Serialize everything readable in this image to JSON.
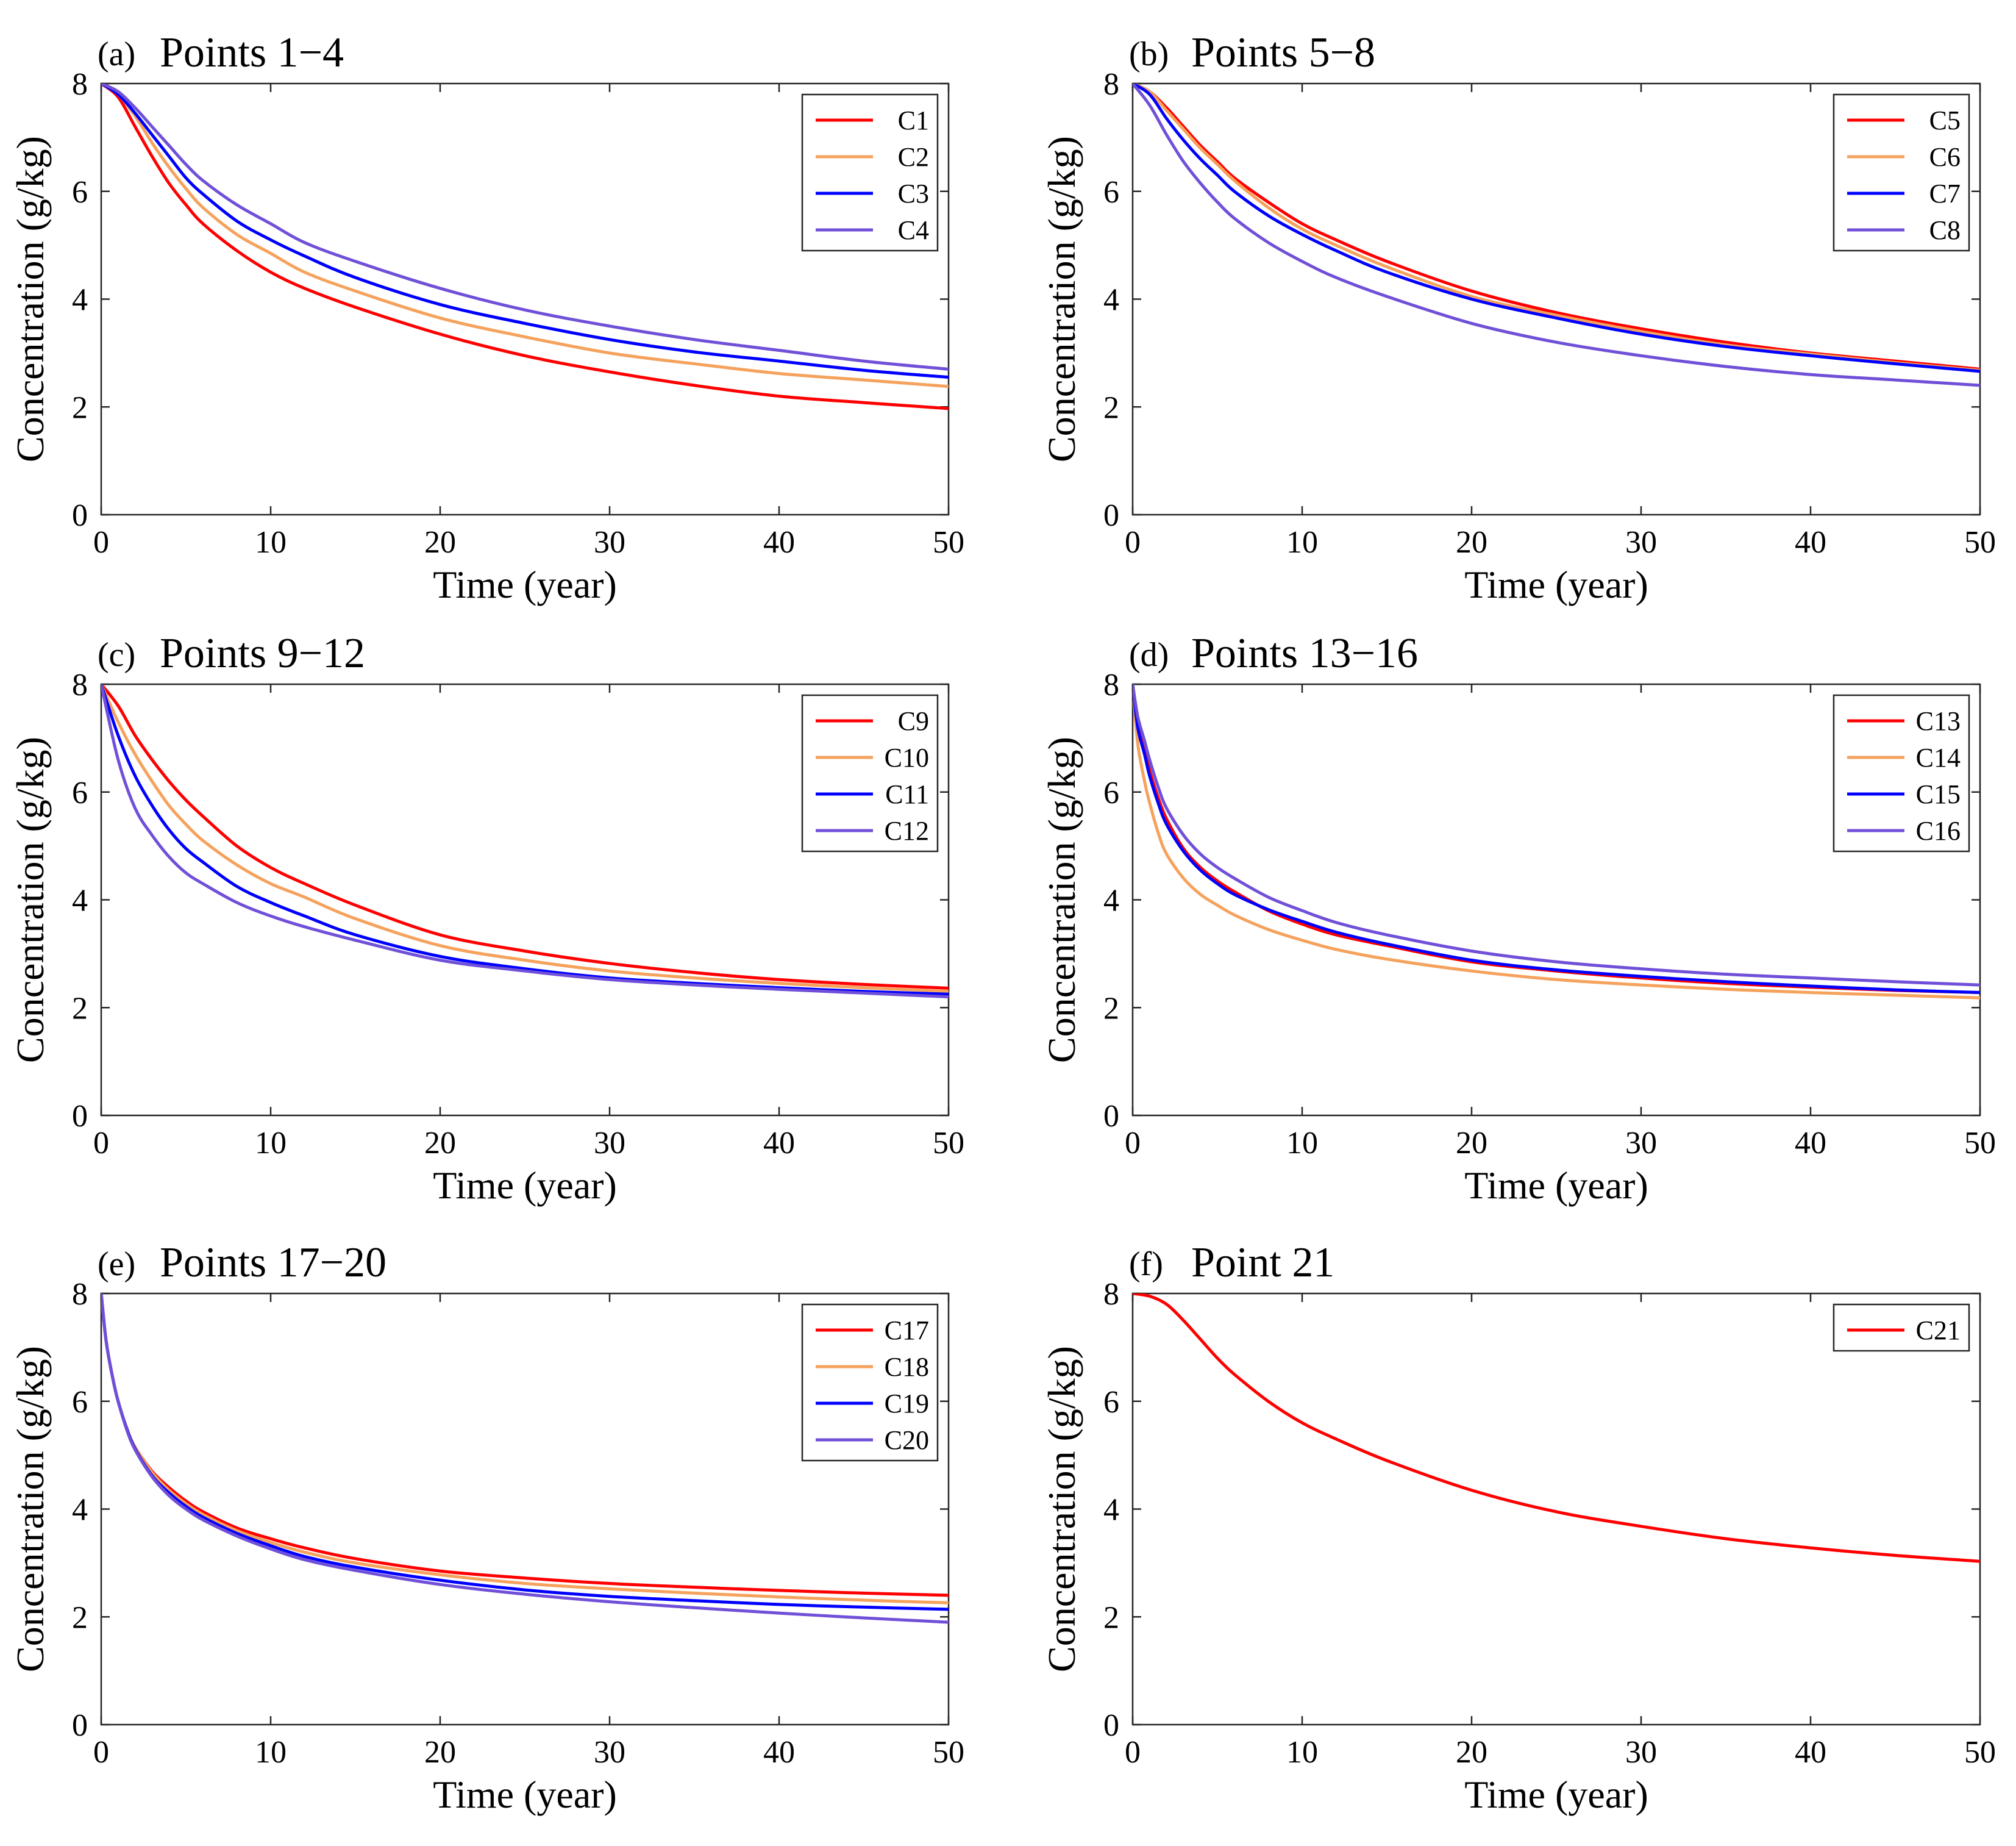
{
  "chart_data": [
    {
      "type": "line",
      "letter": "(a)",
      "title": "Points 1−4",
      "xlabel": "Time (year)",
      "ylabel": "Concentration (g/kg)",
      "xlim": [
        0,
        50
      ],
      "ylim": [
        0,
        8
      ],
      "xticks": [
        "0",
        "10",
        "20",
        "30",
        "40",
        "50"
      ],
      "yticks": [
        "0",
        "2",
        "4",
        "6",
        "8"
      ],
      "legend_position": "top-right",
      "series": [
        {
          "name": "C1",
          "color": "#ff0000",
          "t": [
            0,
            1,
            2,
            3,
            4,
            5,
            6,
            8,
            10,
            12,
            15,
            20,
            25,
            30,
            35,
            40,
            45,
            50
          ],
          "c": [
            8.0,
            7.75,
            7.2,
            6.65,
            6.15,
            5.75,
            5.4,
            4.9,
            4.5,
            4.2,
            3.85,
            3.35,
            2.95,
            2.65,
            2.4,
            2.2,
            2.08,
            1.97
          ]
        },
        {
          "name": "C2",
          "color": "#f5a25d",
          "t": [
            0,
            1,
            2,
            3,
            4,
            5,
            6,
            8,
            10,
            12,
            15,
            20,
            25,
            30,
            35,
            40,
            45,
            50
          ],
          "c": [
            8.0,
            7.8,
            7.4,
            6.9,
            6.45,
            6.05,
            5.7,
            5.2,
            4.85,
            4.5,
            4.15,
            3.65,
            3.3,
            3.0,
            2.8,
            2.62,
            2.5,
            2.38
          ]
        },
        {
          "name": "C3",
          "color": "#0000ff",
          "t": [
            0,
            1,
            2,
            3,
            4,
            5,
            6,
            8,
            10,
            12,
            15,
            20,
            25,
            30,
            35,
            40,
            45,
            50
          ],
          "c": [
            8.0,
            7.8,
            7.45,
            7.05,
            6.65,
            6.25,
            5.95,
            5.45,
            5.1,
            4.8,
            4.4,
            3.9,
            3.55,
            3.25,
            3.02,
            2.85,
            2.68,
            2.55
          ]
        },
        {
          "name": "C4",
          "color": "#7050d8",
          "t": [
            0,
            1,
            2,
            3,
            4,
            5,
            6,
            8,
            10,
            12,
            15,
            20,
            25,
            30,
            35,
            40,
            45,
            50
          ],
          "c": [
            8.0,
            7.85,
            7.55,
            7.2,
            6.85,
            6.5,
            6.2,
            5.75,
            5.4,
            5.05,
            4.7,
            4.2,
            3.8,
            3.5,
            3.25,
            3.05,
            2.85,
            2.7
          ]
        }
      ]
    },
    {
      "type": "line",
      "letter": "(b)",
      "title": "Points 5−8",
      "xlabel": "Time (year)",
      "ylabel": "Concentration (g/kg)",
      "xlim": [
        0,
        50
      ],
      "ylim": [
        0,
        8
      ],
      "xticks": [
        "0",
        "10",
        "20",
        "30",
        "40",
        "50"
      ],
      "yticks": [
        "0",
        "2",
        "4",
        "6",
        "8"
      ],
      "legend_position": "top-right",
      "series": [
        {
          "name": "C5",
          "color": "#ff0000",
          "t": [
            0,
            1,
            2,
            3,
            4,
            5,
            6,
            8,
            10,
            12,
            15,
            20,
            25,
            30,
            35,
            40,
            45,
            50
          ],
          "c": [
            8.0,
            7.85,
            7.55,
            7.2,
            6.85,
            6.55,
            6.25,
            5.8,
            5.4,
            5.1,
            4.7,
            4.15,
            3.75,
            3.45,
            3.2,
            3.0,
            2.85,
            2.7
          ]
        },
        {
          "name": "C6",
          "color": "#f5a25d",
          "t": [
            0,
            1,
            2,
            3,
            4,
            5,
            6,
            8,
            10,
            12,
            15,
            20,
            25,
            30,
            35,
            40,
            45,
            50
          ],
          "c": [
            8.0,
            7.85,
            7.5,
            7.15,
            6.8,
            6.5,
            6.2,
            5.7,
            5.3,
            5.0,
            4.6,
            4.05,
            3.7,
            3.4,
            3.15,
            2.98,
            2.82,
            2.68
          ]
        },
        {
          "name": "C7",
          "color": "#0000ff",
          "t": [
            0,
            1,
            2,
            3,
            4,
            5,
            6,
            8,
            10,
            12,
            15,
            20,
            25,
            30,
            35,
            40,
            45,
            50
          ],
          "c": [
            8.0,
            7.8,
            7.35,
            6.95,
            6.6,
            6.3,
            6.0,
            5.55,
            5.2,
            4.9,
            4.5,
            4.0,
            3.65,
            3.35,
            3.12,
            2.95,
            2.8,
            2.66
          ]
        },
        {
          "name": "C8",
          "color": "#7050d8",
          "t": [
            0,
            1,
            2,
            3,
            4,
            5,
            6,
            8,
            10,
            12,
            15,
            20,
            25,
            30,
            35,
            40,
            45,
            50
          ],
          "c": [
            8.0,
            7.6,
            7.05,
            6.55,
            6.15,
            5.8,
            5.5,
            5.05,
            4.7,
            4.4,
            4.05,
            3.55,
            3.2,
            2.95,
            2.75,
            2.6,
            2.5,
            2.4
          ]
        }
      ]
    },
    {
      "type": "line",
      "letter": "(c)",
      "title": "Points 9−12",
      "xlabel": "Time (year)",
      "ylabel": "Concentration (g/kg)",
      "xlim": [
        0,
        50
      ],
      "ylim": [
        0,
        8
      ],
      "xticks": [
        "0",
        "10",
        "20",
        "30",
        "40",
        "50"
      ],
      "yticks": [
        "0",
        "2",
        "4",
        "6",
        "8"
      ],
      "legend_position": "top-right",
      "series": [
        {
          "name": "C9",
          "color": "#ff0000",
          "t": [
            0,
            1,
            2,
            3,
            4,
            5,
            6,
            8,
            10,
            12,
            15,
            20,
            25,
            30,
            35,
            40,
            45,
            50
          ],
          "c": [
            8.0,
            7.6,
            7.05,
            6.6,
            6.2,
            5.85,
            5.55,
            5.0,
            4.6,
            4.3,
            3.9,
            3.35,
            3.05,
            2.82,
            2.65,
            2.52,
            2.43,
            2.36
          ]
        },
        {
          "name": "C10",
          "color": "#f5a25d",
          "t": [
            0,
            1,
            2,
            3,
            4,
            5,
            6,
            8,
            10,
            12,
            15,
            20,
            25,
            30,
            35,
            40,
            45,
            50
          ],
          "c": [
            8.0,
            7.3,
            6.7,
            6.2,
            5.75,
            5.4,
            5.1,
            4.65,
            4.3,
            4.05,
            3.65,
            3.15,
            2.88,
            2.68,
            2.55,
            2.45,
            2.37,
            2.3
          ]
        },
        {
          "name": "C11",
          "color": "#0000ff",
          "t": [
            0,
            1,
            2,
            3,
            4,
            5,
            6,
            8,
            10,
            12,
            15,
            20,
            25,
            30,
            35,
            40,
            45,
            50
          ],
          "c": [
            8.0,
            7.05,
            6.3,
            5.75,
            5.3,
            4.95,
            4.7,
            4.25,
            3.95,
            3.7,
            3.35,
            2.95,
            2.72,
            2.55,
            2.45,
            2.37,
            2.3,
            2.25
          ]
        },
        {
          "name": "C12",
          "color": "#7050d8",
          "t": [
            0,
            1,
            2,
            3,
            4,
            5,
            6,
            8,
            10,
            12,
            15,
            20,
            25,
            30,
            35,
            40,
            45,
            50
          ],
          "c": [
            8.0,
            6.6,
            5.7,
            5.2,
            4.8,
            4.5,
            4.3,
            3.95,
            3.7,
            3.5,
            3.25,
            2.88,
            2.68,
            2.52,
            2.42,
            2.34,
            2.27,
            2.2
          ]
        }
      ]
    },
    {
      "type": "line",
      "letter": "(d)",
      "title": "Points 13−16",
      "xlabel": "Time (year)",
      "ylabel": "Concentration (g/kg)",
      "xlim": [
        0,
        50
      ],
      "ylim": [
        0,
        8
      ],
      "xticks": [
        "0",
        "10",
        "20",
        "30",
        "40",
        "50"
      ],
      "yticks": [
        "0",
        "2",
        "4",
        "6",
        "8"
      ],
      "legend_position": "top-right",
      "series": [
        {
          "name": "C13",
          "color": "#ff0000",
          "t": [
            0,
            0.3,
            0.7,
            1,
            1.5,
            2,
            3,
            4,
            5,
            6,
            8,
            10,
            12,
            15,
            20,
            25,
            30,
            35,
            40,
            45,
            50
          ],
          "c": [
            8.0,
            7.3,
            6.8,
            6.4,
            5.9,
            5.5,
            4.95,
            4.6,
            4.35,
            4.15,
            3.8,
            3.55,
            3.35,
            3.15,
            2.85,
            2.68,
            2.55,
            2.45,
            2.38,
            2.32,
            2.28
          ]
        },
        {
          "name": "C14",
          "color": "#f5a25d",
          "t": [
            0,
            0.3,
            0.7,
            1,
            1.5,
            2,
            3,
            4,
            5,
            6,
            8,
            10,
            12,
            15,
            20,
            25,
            30,
            35,
            40,
            45,
            50
          ],
          "c": [
            8.0,
            6.9,
            6.2,
            5.8,
            5.25,
            4.85,
            4.4,
            4.1,
            3.9,
            3.72,
            3.45,
            3.25,
            3.08,
            2.9,
            2.68,
            2.52,
            2.42,
            2.34,
            2.28,
            2.23,
            2.18
          ]
        },
        {
          "name": "C15",
          "color": "#0000ff",
          "t": [
            0,
            0.3,
            0.7,
            1,
            1.5,
            2,
            3,
            4,
            5,
            6,
            8,
            10,
            12,
            15,
            20,
            25,
            30,
            35,
            40,
            45,
            50
          ],
          "c": [
            8.0,
            7.2,
            6.7,
            6.3,
            5.8,
            5.4,
            4.9,
            4.55,
            4.3,
            4.1,
            3.82,
            3.6,
            3.4,
            3.18,
            2.88,
            2.7,
            2.58,
            2.48,
            2.4,
            2.33,
            2.28
          ]
        },
        {
          "name": "C16",
          "color": "#7050d8",
          "t": [
            0,
            0.3,
            0.7,
            1,
            1.5,
            2,
            3,
            4,
            5,
            6,
            8,
            10,
            12,
            15,
            20,
            25,
            30,
            35,
            40,
            45,
            50
          ],
          "c": [
            8.0,
            7.4,
            6.95,
            6.6,
            6.1,
            5.7,
            5.2,
            4.85,
            4.6,
            4.4,
            4.05,
            3.8,
            3.58,
            3.35,
            3.05,
            2.85,
            2.72,
            2.62,
            2.55,
            2.48,
            2.42
          ]
        }
      ]
    },
    {
      "type": "line",
      "letter": "(e)",
      "title": "Points 17−20",
      "xlabel": "Time (year)",
      "ylabel": "Concentration (g/kg)",
      "xlim": [
        0,
        50
      ],
      "ylim": [
        0,
        8
      ],
      "xticks": [
        "0",
        "10",
        "20",
        "30",
        "40",
        "50"
      ],
      "yticks": [
        "0",
        "2",
        "4",
        "6",
        "8"
      ],
      "legend_position": "top-right",
      "series": [
        {
          "name": "C17",
          "color": "#ff0000",
          "t": [
            0,
            0.3,
            0.7,
            1,
            1.5,
            2,
            3,
            4,
            5,
            6,
            8,
            10,
            12,
            15,
            20,
            25,
            30,
            35,
            40,
            45,
            50
          ],
          "c": [
            8.0,
            7.1,
            6.4,
            6.0,
            5.5,
            5.15,
            4.7,
            4.4,
            4.15,
            3.95,
            3.65,
            3.45,
            3.28,
            3.08,
            2.85,
            2.72,
            2.62,
            2.55,
            2.49,
            2.44,
            2.4
          ]
        },
        {
          "name": "C18",
          "color": "#f5a25d",
          "t": [
            0,
            0.3,
            0.7,
            1,
            1.5,
            2,
            3,
            4,
            5,
            6,
            8,
            10,
            12,
            15,
            20,
            25,
            30,
            35,
            40,
            45,
            50
          ],
          "c": [
            8.0,
            7.1,
            6.4,
            6.0,
            5.5,
            5.15,
            4.68,
            4.35,
            4.1,
            3.9,
            3.6,
            3.38,
            3.2,
            3.0,
            2.78,
            2.62,
            2.52,
            2.44,
            2.37,
            2.31,
            2.26
          ]
        },
        {
          "name": "C19",
          "color": "#0000ff",
          "t": [
            0,
            0.3,
            0.7,
            1,
            1.5,
            2,
            3,
            4,
            5,
            6,
            8,
            10,
            12,
            15,
            20,
            25,
            30,
            35,
            40,
            45,
            50
          ],
          "c": [
            8.0,
            7.1,
            6.4,
            6.0,
            5.5,
            5.12,
            4.62,
            4.3,
            4.05,
            3.85,
            3.55,
            3.32,
            3.12,
            2.92,
            2.68,
            2.5,
            2.38,
            2.3,
            2.23,
            2.18,
            2.14
          ]
        },
        {
          "name": "C20",
          "color": "#7050d8",
          "t": [
            0,
            0.3,
            0.7,
            1,
            1.5,
            2,
            3,
            4,
            5,
            6,
            8,
            10,
            12,
            15,
            20,
            25,
            30,
            35,
            40,
            45,
            50
          ],
          "c": [
            8.0,
            7.1,
            6.4,
            6.0,
            5.48,
            5.1,
            4.6,
            4.25,
            4.0,
            3.8,
            3.5,
            3.26,
            3.06,
            2.86,
            2.6,
            2.42,
            2.28,
            2.17,
            2.07,
            1.98,
            1.9
          ]
        }
      ]
    },
    {
      "type": "line",
      "letter": "(f)",
      "title": "Point 21",
      "xlabel": "Time (year)",
      "ylabel": "Concentration (g/kg)",
      "xlim": [
        0,
        50
      ],
      "ylim": [
        0,
        8
      ],
      "xticks": [
        "0",
        "10",
        "20",
        "30",
        "40",
        "50"
      ],
      "yticks": [
        "0",
        "2",
        "4",
        "6",
        "8"
      ],
      "legend_position": "top-right",
      "series": [
        {
          "name": "C21",
          "color": "#ff0000",
          "t": [
            0,
            1,
            2,
            3,
            4,
            5,
            6,
            8,
            10,
            12,
            15,
            20,
            25,
            30,
            35,
            40,
            45,
            50
          ],
          "c": [
            8.0,
            7.95,
            7.8,
            7.5,
            7.15,
            6.8,
            6.5,
            6.0,
            5.6,
            5.3,
            4.9,
            4.35,
            3.95,
            3.68,
            3.45,
            3.28,
            3.14,
            3.03
          ]
        }
      ]
    }
  ]
}
